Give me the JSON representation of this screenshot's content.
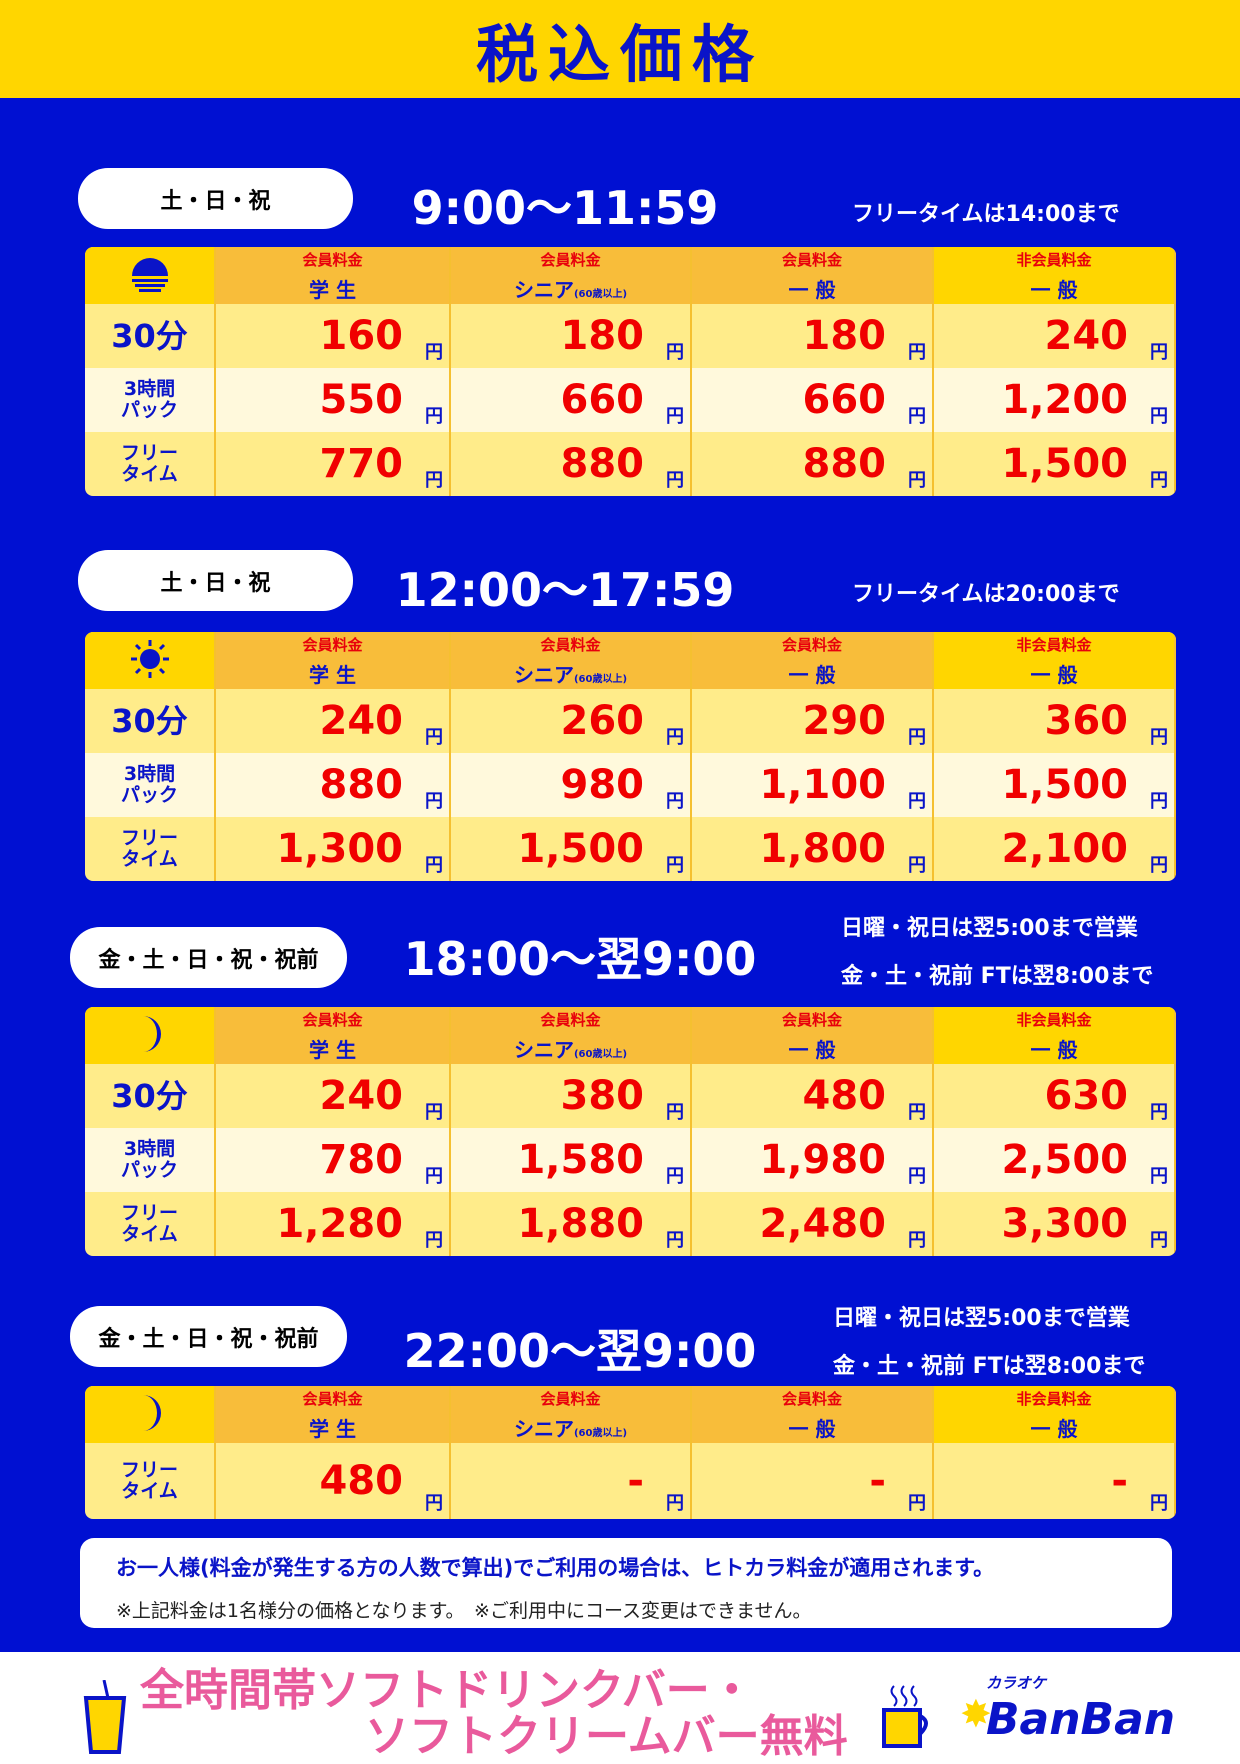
{
  "title": "税込価格",
  "yen": "円",
  "headers": [
    {
      "top": "会員料金",
      "main": "学 生",
      "sub": ""
    },
    {
      "top": "会員料金",
      "main": "シニア",
      "sub": "(60歳以上)"
    },
    {
      "top": "会員料金",
      "main": "一 般",
      "sub": ""
    },
    {
      "top": "非会員料金",
      "main": "一 般",
      "sub": ""
    }
  ],
  "row_labels": {
    "r30": "30分",
    "pack_a": "3時間",
    "pack_b": "パック",
    "free_a": "フリー",
    "free_b": "タイム"
  },
  "sections": [
    {
      "days": "土・日・祝",
      "time": "9:00〜11:59",
      "notes": [
        "フリータイムは14:00まで"
      ],
      "icon": "sunset-icon",
      "rows": [
        [
          "160",
          "180",
          "180",
          "240"
        ],
        [
          "550",
          "660",
          "660",
          "1,200"
        ],
        [
          "770",
          "880",
          "880",
          "1,500"
        ]
      ]
    },
    {
      "days": "土・日・祝",
      "time": "12:00〜17:59",
      "notes": [
        "フリータイムは20:00まで"
      ],
      "icon": "sun-icon",
      "rows": [
        [
          "240",
          "260",
          "290",
          "360"
        ],
        [
          "880",
          "980",
          "1,100",
          "1,500"
        ],
        [
          "1,300",
          "1,500",
          "1,800",
          "2,100"
        ]
      ]
    },
    {
      "days": "金・土・日・祝・祝前",
      "time": "18:00〜翌9:00",
      "notes": [
        "日曜・祝日は翌5:00まで営業",
        "金・土・祝前 FTは翌8:00まで"
      ],
      "icon": "moon-icon",
      "rows": [
        [
          "240",
          "380",
          "480",
          "630"
        ],
        [
          "780",
          "1,580",
          "1,980",
          "2,500"
        ],
        [
          "1,280",
          "1,880",
          "2,480",
          "3,300"
        ]
      ]
    },
    {
      "days": "金・土・日・祝・祝前",
      "time": "22:00〜翌9:00",
      "notes": [
        "日曜・祝日は翌5:00まで営業",
        "金・土・祝前 FTは翌8:00まで"
      ],
      "icon": "moon-icon",
      "rows": [
        [
          "480",
          "-",
          "-",
          "-"
        ]
      ]
    }
  ],
  "notice": {
    "main": "お一人様(料金が発生する方の人数で算出)でご利用の場合は、ヒトカラ料金が適用されます。",
    "sub": "※上記料金は1名様分の価格となります。　※ご利用中にコース変更はできません。"
  },
  "footer": {
    "line1": "全時間帯ソフトドリンクバー・",
    "line2": "ソフトクリームバー無料",
    "logo_small": "カラオケ",
    "logo": "BanBan"
  },
  "colors": {
    "blue": "#0010D2",
    "yellow": "#FFD600",
    "red": "#F00000",
    "pink": "#E95A9C"
  }
}
